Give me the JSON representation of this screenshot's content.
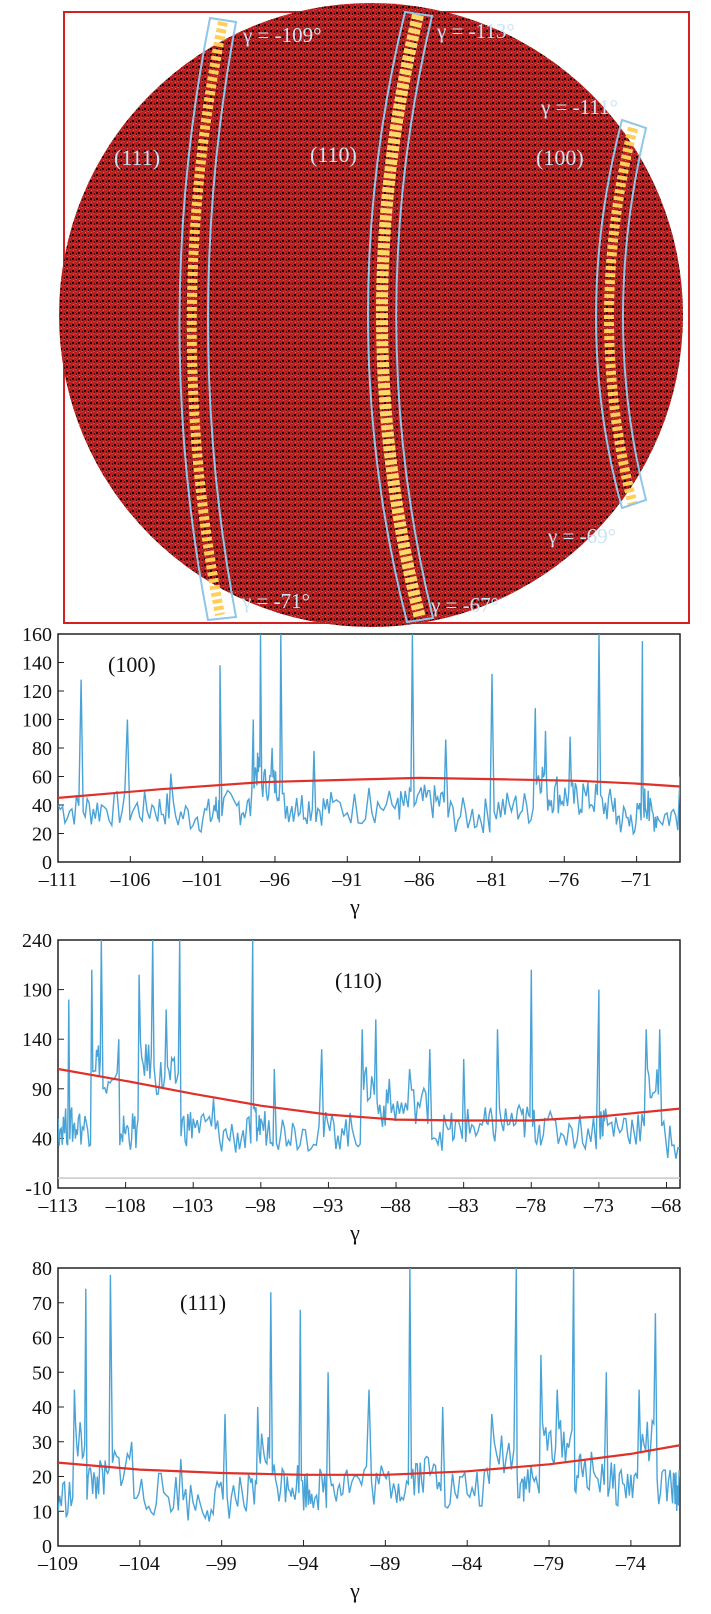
{
  "colors": {
    "frame": "#d42020",
    "detector_bg": "#b81e1e",
    "band_outline": "#8fc6e8",
    "trace": "#4aa3d6",
    "fit": "#e0302a",
    "label_text": "#c8e4f6"
  },
  "detector": {
    "rings": [
      {
        "label": "(111)",
        "gamma_top": "γ = -109°",
        "gamma_bottom": "γ = -71°"
      },
      {
        "label": "(110)",
        "gamma_top": "γ = -113°",
        "gamma_bottom": "γ = -67°"
      },
      {
        "label": "(100)",
        "gamma_top": "γ = -111°",
        "gamma_bottom": "γ = -69°"
      }
    ]
  },
  "chart_data": [
    {
      "type": "line",
      "annotation": "(100)",
      "xlabel": "γ",
      "xlim": [
        -111,
        -68
      ],
      "ylim": [
        0,
        160
      ],
      "xticks": [
        -111,
        -106,
        -101,
        -96,
        -91,
        -86,
        -81,
        -76,
        -71
      ],
      "yticks": [
        0,
        20,
        40,
        60,
        80,
        100,
        120,
        140,
        160
      ],
      "series": [
        {
          "x": [
            -111,
            -109.4,
            -108,
            -106.2,
            -104.5,
            -103.2,
            -101.5,
            -100.2,
            -99.8,
            -98.5,
            -97.5,
            -97.0,
            -96.2,
            -95.6,
            -94.5,
            -93.3,
            -92.0,
            -89.5,
            -87.5,
            -86.5,
            -85.3,
            -84.2,
            -82.5,
            -81.0,
            -79.5,
            -78.0,
            -77.3,
            -76.5,
            -75.6,
            -74.7,
            -73.6,
            -72.5,
            -71.5,
            -70.6,
            -70.2,
            -69.5,
            -68.0
          ],
          "values": [
            40,
            128,
            40,
            100,
            40,
            62,
            30,
            40,
            138,
            42,
            100,
            160,
            80,
            160,
            45,
            78,
            42,
            52,
            45,
            160,
            50,
            86,
            30,
            132,
            42,
            108,
            92,
            60,
            88,
            55,
            160,
            45,
            25,
            155,
            50,
            30,
            60
          ]
        },
        {
          "name": "fit",
          "x": [
            -111,
            -104,
            -97,
            -90,
            -86,
            -80,
            -75,
            -71,
            -68
          ],
          "values": [
            45,
            51,
            56,
            58,
            59,
            58,
            57,
            55,
            53
          ]
        }
      ]
    },
    {
      "type": "line",
      "annotation": "(110)",
      "xlabel": "γ",
      "xlim": [
        -113,
        -67
      ],
      "ylim": [
        -10,
        240
      ],
      "xticks": [
        -113,
        -108,
        -103,
        -98,
        -93,
        -88,
        -83,
        -78,
        -73,
        -68
      ],
      "yticks": [
        -10,
        40,
        90,
        140,
        190,
        240
      ],
      "series": [
        {
          "x": [
            -113,
            -112.2,
            -111.5,
            -110.5,
            -109.8,
            -108.5,
            -107.8,
            -107.0,
            -106.0,
            -105.0,
            -104.0,
            -103.0,
            -101.5,
            -100.0,
            -98.6,
            -98.0,
            -97.0,
            -95.5,
            -93.5,
            -92.0,
            -90.5,
            -89.5,
            -88.5,
            -87.0,
            -85.5,
            -84.0,
            -83.0,
            -81.5,
            -80.5,
            -79.0,
            -78.0,
            -77.0,
            -75.0,
            -73.0,
            -72.5,
            -71.0,
            -69.5,
            -68.5,
            -67.0
          ],
          "values": [
            60,
            180,
            60,
            210,
            240,
            140,
            50,
            205,
            240,
            170,
            240,
            60,
            80,
            40,
            240,
            60,
            110,
            50,
            130,
            50,
            150,
            160,
            100,
            110,
            130,
            50,
            120,
            60,
            150,
            70,
            210,
            60,
            50,
            190,
            70,
            60,
            150,
            150,
            30
          ]
        },
        {
          "name": "fit",
          "x": [
            -113,
            -108,
            -103,
            -98,
            -93,
            -88,
            -83,
            -78,
            -73,
            -67
          ],
          "values": [
            110,
            98,
            85,
            73,
            64,
            59,
            58,
            58,
            62,
            70
          ]
        }
      ]
    },
    {
      "type": "line",
      "annotation": "(111)",
      "xlabel": "γ",
      "xlim": [
        -109,
        -71
      ],
      "ylim": [
        0,
        80
      ],
      "xticks": [
        -109,
        -104,
        -99,
        -94,
        -89,
        -84,
        -79,
        -74
      ],
      "yticks": [
        0,
        10,
        20,
        30,
        40,
        50,
        60,
        70,
        80
      ],
      "series": [
        {
          "x": [
            -109,
            -108.0,
            -107.3,
            -106.6,
            -105.8,
            -104.5,
            -103.0,
            -101.5,
            -100.0,
            -98.8,
            -97.5,
            -96.8,
            -96.0,
            -95.0,
            -94.2,
            -93.5,
            -92.5,
            -91.5,
            -90.0,
            -88.5,
            -87.5,
            -86.6,
            -85.5,
            -84.0,
            -82.5,
            -81.0,
            -80.5,
            -79.5,
            -78.5,
            -77.5,
            -76.8,
            -75.5,
            -74.5,
            -73.5,
            -72.5,
            -71.5,
            -71.0
          ],
          "values": [
            10,
            45,
            74,
            20,
            78,
            30,
            12,
            25,
            8,
            38,
            10,
            40,
            73,
            20,
            68,
            15,
            50,
            20,
            45,
            18,
            80,
            25,
            40,
            15,
            38,
            80,
            20,
            55,
            45,
            80,
            25,
            50,
            18,
            45,
            67,
            15,
            20
          ]
        },
        {
          "name": "fit",
          "x": [
            -109,
            -104,
            -99,
            -94,
            -89,
            -84,
            -79,
            -74,
            -71
          ],
          "values": [
            24,
            22,
            21,
            20.5,
            20.5,
            21.5,
            23.5,
            26.5,
            29
          ]
        }
      ]
    }
  ]
}
